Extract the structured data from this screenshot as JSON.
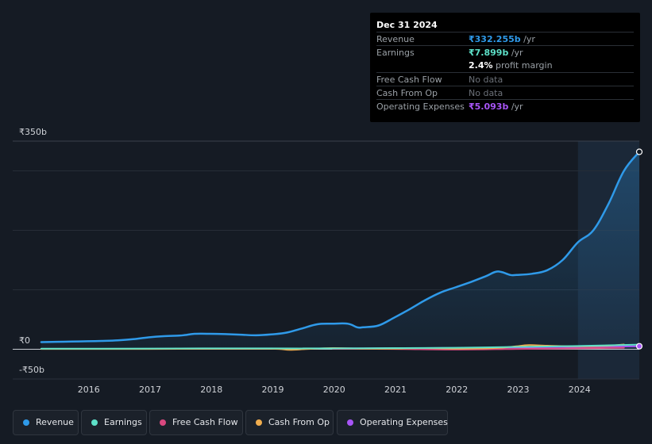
{
  "tooltip": {
    "date": "Dec 31 2024",
    "rows": {
      "revenue": {
        "label": "Revenue",
        "value": "₹332.255b",
        "suffix": " /yr",
        "color": "#2f9ae9"
      },
      "earnings": {
        "label": "Earnings",
        "value": "₹7.899b",
        "suffix": " /yr",
        "color": "#5de0c8"
      },
      "margin": {
        "value": "2.4%",
        "suffix": " profit margin"
      },
      "fcf": {
        "label": "Free Cash Flow",
        "value": "No data"
      },
      "cfo": {
        "label": "Cash From Op",
        "value": "No data"
      },
      "opex": {
        "label": "Operating Expenses",
        "value": "₹5.093b",
        "suffix": " /yr",
        "color": "#a855f7"
      }
    }
  },
  "legend": {
    "revenue": {
      "label": "Revenue",
      "color": "#2f9ae9"
    },
    "earnings": {
      "label": "Earnings",
      "color": "#5de0c8"
    },
    "fcf": {
      "label": "Free Cash Flow",
      "color": "#d9487f"
    },
    "cfo": {
      "label": "Cash From Op",
      "color": "#f0ad4e"
    },
    "opex": {
      "label": "Operating Expenses",
      "color": "#a855f7"
    }
  },
  "chart_data": {
    "type": "line",
    "y_tick_labels": [
      "₹350b",
      "₹0",
      "-₹50b"
    ],
    "ylim": [
      -50,
      350
    ],
    "xlim": [
      2015.2,
      2025.0
    ],
    "x_ticks": [
      2016,
      2017,
      2018,
      2019,
      2020,
      2021,
      2022,
      2023,
      2024
    ],
    "x_tick_labels": [
      "2016",
      "2017",
      "2018",
      "2019",
      "2020",
      "2021",
      "2022",
      "2023",
      "2024"
    ],
    "highlight_from": 2024.0,
    "series": [
      {
        "name": "Revenue",
        "color": "#2f9ae9",
        "x": [
          2015.25,
          2015.5,
          2015.75,
          2016.0,
          2016.25,
          2016.5,
          2016.75,
          2017.0,
          2017.25,
          2017.5,
          2017.6,
          2017.75,
          2018.0,
          2018.25,
          2018.5,
          2018.75,
          2019.0,
          2019.25,
          2019.5,
          2019.75,
          2020.0,
          2020.25,
          2020.4,
          2020.5,
          2020.75,
          2021.0,
          2021.25,
          2021.5,
          2021.75,
          2022.0,
          2022.25,
          2022.5,
          2022.65,
          2022.75,
          2022.9,
          2023.0,
          2023.25,
          2023.5,
          2023.75,
          2024.0,
          2024.25,
          2024.5,
          2024.75,
          2025.0
        ],
        "values": [
          12,
          12.5,
          13,
          13.5,
          14,
          15,
          17,
          20,
          22,
          23,
          24,
          26,
          26,
          25.5,
          24.5,
          23.5,
          25,
          28,
          35,
          42,
          43,
          43,
          37,
          37,
          40,
          53,
          67,
          82,
          95,
          104,
          113,
          123,
          130,
          130,
          125,
          125,
          127,
          133,
          150,
          180,
          200,
          245,
          300,
          332
        ]
      },
      {
        "name": "Earnings",
        "color": "#5de0c8",
        "x": [
          2015.25,
          2016.0,
          2017.0,
          2018.0,
          2019.0,
          2020.0,
          2021.0,
          2022.0,
          2023.0,
          2024.0,
          2025.0
        ],
        "values": [
          1,
          1,
          1.2,
          1.5,
          1.4,
          1.5,
          2,
          2.5,
          4,
          5.5,
          7.9
        ]
      },
      {
        "name": "Cash From Op",
        "color": "#f0ad4e",
        "x": [
          2015.25,
          2016.0,
          2017.0,
          2018.0,
          2019.0,
          2019.3,
          2019.6,
          2020.0,
          2020.5,
          2021.0,
          2021.5,
          2022.0,
          2022.5,
          2022.8,
          2023.0,
          2023.2,
          2023.5,
          2024.0,
          2024.5,
          2024.75
        ],
        "values": [
          0.5,
          0.5,
          0.6,
          0.8,
          0.8,
          -1,
          0.5,
          2,
          1,
          1,
          2,
          1,
          1.5,
          3,
          5,
          7,
          6,
          5,
          6,
          8
        ]
      },
      {
        "name": "Free Cash Flow",
        "color": "#d9487f",
        "x": [
          2020.0,
          2021.0,
          2022.0,
          2023.0,
          2024.0,
          2024.75
        ],
        "values": [
          1,
          0.5,
          -0.5,
          0.5,
          1.5,
          2.5
        ]
      },
      {
        "name": "Operating Expenses",
        "color": "#a855f7",
        "x": [
          2020.0,
          2020.5,
          2021.0,
          2021.5,
          2022.0,
          2022.5,
          2023.0,
          2023.5,
          2024.0,
          2024.5,
          2025.0
        ],
        "values": [
          1.5,
          1.5,
          1.8,
          2,
          2.2,
          2.5,
          3,
          3.5,
          4,
          4.5,
          5.1
        ]
      }
    ]
  }
}
